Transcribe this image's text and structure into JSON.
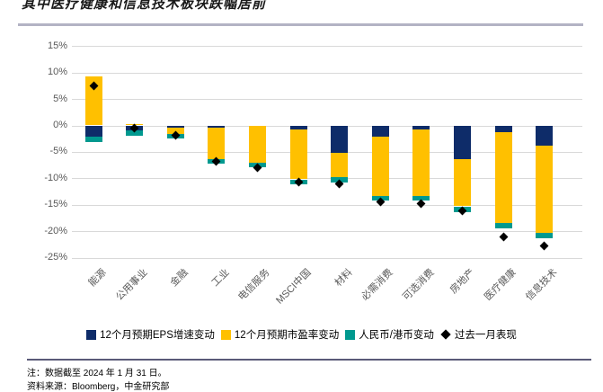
{
  "title": "其中医疗健康和信息技术板块跌幅居前",
  "colors": {
    "eps_navy": "#0e2c69",
    "pe_yellow": "#ffc000",
    "fx_teal": "#00998f",
    "marker_black": "#000000",
    "grid": "#d9d9d9",
    "axis_text": "#595959",
    "top_divider": "#b3b3c4",
    "note_rule": "#5a5a78"
  },
  "legend": [
    {
      "label": "12个月预期EPS增速变动",
      "shape": "square",
      "color": "#0e2c69"
    },
    {
      "label": "12个月预期市盈率变动",
      "shape": "square",
      "color": "#ffc000"
    },
    {
      "label": "人民币/港币变动",
      "shape": "square",
      "color": "#00998f"
    },
    {
      "label": "过去一月表现",
      "shape": "diamond",
      "color": "#000000"
    }
  ],
  "notes": {
    "line1": "注：数据截至 2024 年 1 月 31 日。",
    "line2": "资料来源：Bloomberg，中金研究部"
  },
  "chart_data": {
    "type": "bar",
    "stacked": true,
    "title": "其中医疗健康和信息技术板块跌幅居前",
    "categories": [
      "能源",
      "公用事业",
      "金融",
      "工业",
      "电信服务",
      "MSCI中国",
      "材料",
      "必需消费",
      "可选消费",
      "房地产",
      "医疗健康",
      "信息技术"
    ],
    "series": [
      {
        "name": "12个月预期EPS增速变动",
        "color": "#0e2c69",
        "values": [
          -2.1,
          -0.9,
          -0.4,
          -0.4,
          0,
          -0.8,
          -5.2,
          -2.1,
          -0.8,
          -6.3,
          -1.3,
          -3.9
        ]
      },
      {
        "name": "12个月预期市盈率变动",
        "color": "#ffc000",
        "values": [
          9.3,
          0.3,
          -1.2,
          -5.9,
          -7.0,
          -9.4,
          -4.6,
          -11.2,
          -12.5,
          -9.0,
          -17.2,
          -16.4
        ]
      },
      {
        "name": "人民币/港币变动",
        "color": "#00998f",
        "values": [
          -1.1,
          -1.0,
          -0.8,
          -1.0,
          -0.9,
          -1.0,
          -1.0,
          -0.9,
          -0.9,
          -1.1,
          -1.0,
          -1.0
        ]
      }
    ],
    "markers": {
      "name": "过去一月表现",
      "shape": "diamond",
      "color": "#000000",
      "values": [
        7.5,
        -0.5,
        -1.8,
        -6.8,
        -8.0,
        -10.7,
        -11.0,
        -14.5,
        -14.8,
        -16.1,
        -21.0,
        -22.7
      ]
    },
    "y_ticks": [
      15,
      10,
      5,
      0,
      -5,
      -10,
      -15,
      -20,
      -25
    ],
    "y_tick_format": "percent",
    "ylim": [
      -25,
      15
    ],
    "grid": true,
    "legend_position": "bottom"
  }
}
